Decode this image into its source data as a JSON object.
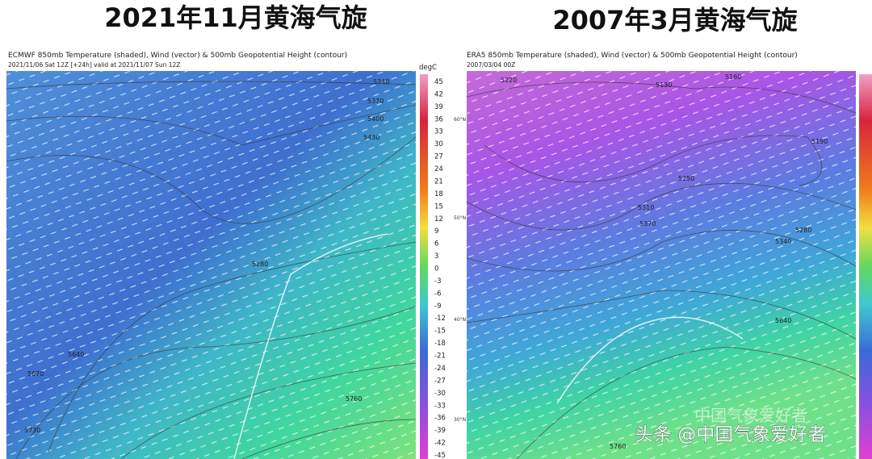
{
  "panels": [
    {
      "title": "2021年11月黄海气旋",
      "header": "ECMWF 850mb Temperature (shaded), Wind (vector) & 500mb Geopotential Height (contour)",
      "subheader": "2021/11/06 Sat 12Z [+24h] valid at 2021/11/07 Sun 12Z",
      "colorbar_unit": "degC",
      "colorbar_ticks": [
        45,
        42,
        39,
        36,
        33,
        30,
        27,
        24,
        21,
        18,
        15,
        12,
        9,
        6,
        3,
        0,
        -3,
        -6,
        -9,
        -12,
        -15,
        -18,
        -21,
        -24,
        -27,
        -30,
        -33,
        -36,
        -39,
        -42,
        -45
      ],
      "contour_labels": [
        "5340",
        "5370",
        "5400",
        "5430",
        "5280",
        "5640",
        "5670",
        "5730",
        "5760"
      ]
    },
    {
      "title": "2007年3月黄海气旋",
      "header": "ERA5 850mb Temperature (shaded), Wind (vector) & 500mb Geopotential Height (contour)",
      "subheader": "2007/03/04 00Z",
      "latitude_labels": [
        "60°N",
        "50°N",
        "40°N",
        "30°N"
      ],
      "contour_labels": [
        "5220",
        "5130",
        "5160",
        "5190",
        "5250",
        "5310",
        "5370",
        "5340",
        "5280",
        "5640",
        "5760"
      ]
    }
  ],
  "watermark": {
    "faint": "中国气象爱好者",
    "main": "头条 @中国气象爱好者"
  }
}
